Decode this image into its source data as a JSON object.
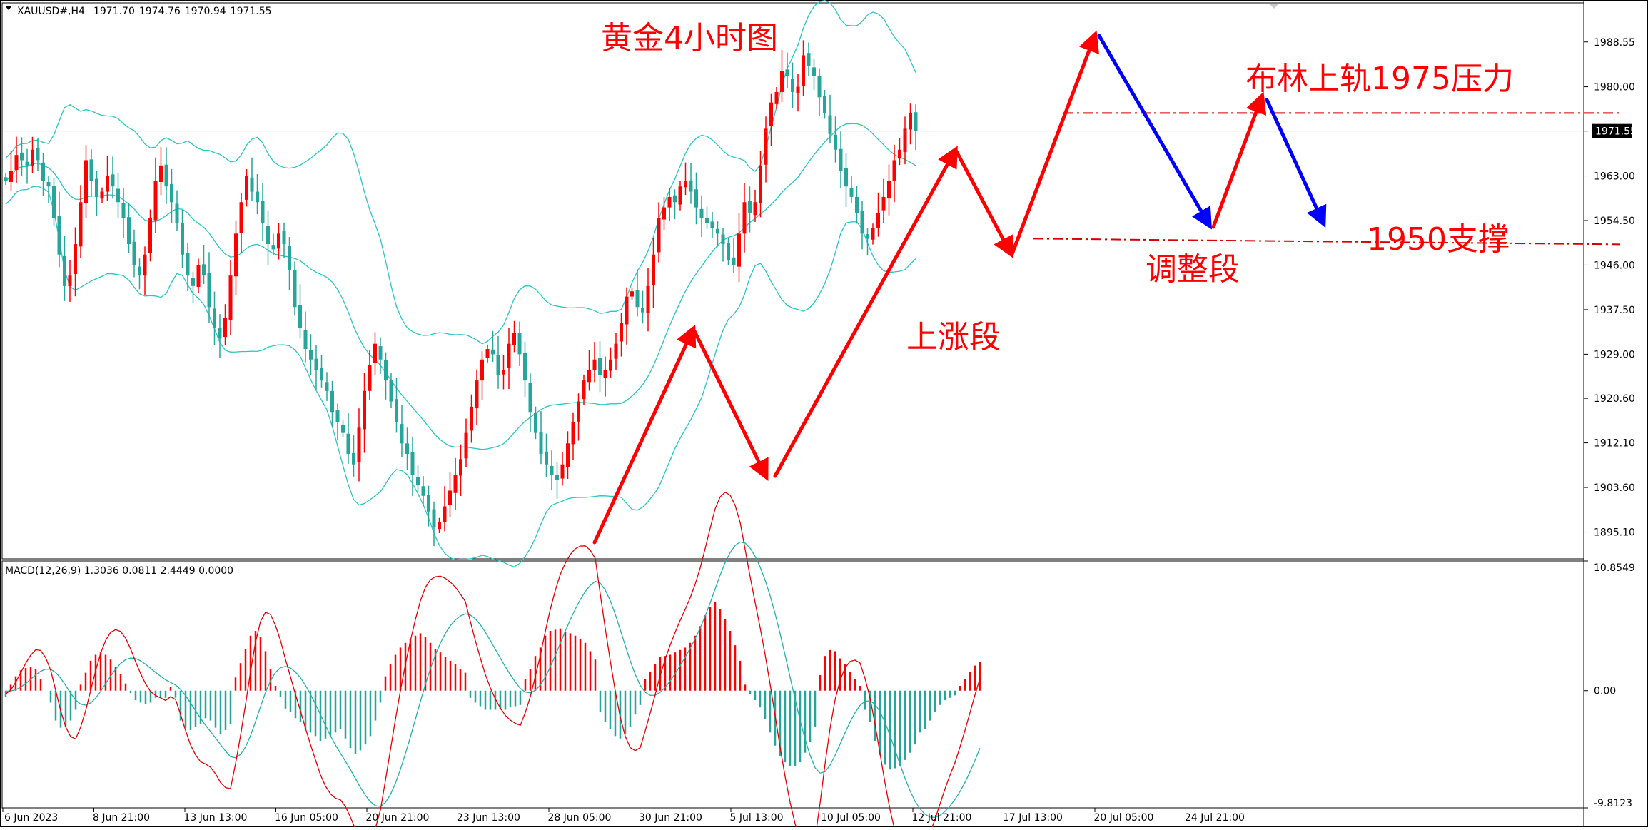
{
  "symbol_info": {
    "symbol": "XAUUSD#,H4",
    "open": "1971.70",
    "high": "1974.76",
    "low": "1970.94",
    "close": "1971.55"
  },
  "macd_info": "MACD(12,26,9) 1.3036 0.0811 2.4449 0.0000",
  "annotations": {
    "title": "黄金4小时图",
    "upper_band_resistance": "布林上轨1975压力",
    "support_1950": "1950支撑",
    "rally_leg": "上涨段",
    "correction_leg": "调整段"
  },
  "colors": {
    "bull": "#ff0000",
    "bear": "#26a69a",
    "bollinger": "#26c6c6",
    "macd_line": "#e00000",
    "signal_line": "#20b2aa",
    "arrow_up": "#ff0000",
    "arrow_down": "#0000ff",
    "dashed": "#d40000",
    "axis_text": "#000000"
  },
  "chart_data": [
    {
      "type": "candlestick",
      "title": "黄金4小时图",
      "ylim": [
        1890,
        1996
      ],
      "y_ticks": [
        "1988.55",
        "1980.00",
        "1971.55",
        "1963.00",
        "1954.50",
        "1946.00",
        "1937.50",
        "1929.00",
        "1920.60",
        "1912.10",
        "1903.60",
        "1895.10"
      ],
      "current_price_label": "1971.55",
      "reference_lines": [
        {
          "label": "布林上轨1975压力",
          "value": 1975
        },
        {
          "label": "1950支撑",
          "value": 1950.5
        }
      ],
      "x_tick_labels": [
        "6 Jun 2023",
        "8 Jun 21:00",
        "13 Jun 13:00",
        "16 Jun 05:00",
        "20 Jun 21:00",
        "23 Jun 13:00",
        "28 Jun 05:00",
        "30 Jun 21:00",
        "5 Jul 13:00",
        "10 Jul 05:00",
        "12 Jul 21:00",
        "17 Jul 13:00",
        "20 Jul 05:00",
        "24 Jul 21:00"
      ],
      "close_path": [
        1962,
        1964,
        1967,
        1966,
        1965,
        1968,
        1966,
        1962,
        1961,
        1955,
        1948,
        1942,
        1944,
        1950,
        1958,
        1966,
        1962,
        1959,
        1960,
        1963,
        1961,
        1958,
        1955,
        1950,
        1946,
        1944,
        1948,
        1955,
        1962,
        1965,
        1961,
        1958,
        1954,
        1948,
        1944,
        1942,
        1946,
        1944,
        1938,
        1934,
        1932,
        1936,
        1944,
        1952,
        1958,
        1963,
        1960,
        1958,
        1954,
        1950,
        1949,
        1952,
        1950,
        1945,
        1938,
        1934,
        1930,
        1928,
        1926,
        1924,
        1922,
        1918,
        1916,
        1914,
        1910,
        1908,
        1915,
        1922,
        1927,
        1931,
        1928,
        1924,
        1920,
        1916,
        1912,
        1910,
        1906,
        1904,
        1902,
        1899,
        1896,
        1897,
        1900,
        1903,
        1906,
        1909,
        1914,
        1919,
        1924,
        1928,
        1930,
        1929,
        1925,
        1926,
        1931,
        1933,
        1929,
        1924,
        1918,
        1914,
        1910,
        1908,
        1906,
        1905,
        1908,
        1912,
        1916,
        1920,
        1924,
        1926,
        1928,
        1925,
        1926,
        1928,
        1931,
        1935,
        1940,
        1941,
        1938,
        1937,
        1942,
        1948,
        1955,
        1957,
        1959,
        1958,
        1961,
        1962,
        1960,
        1957,
        1955,
        1954,
        1953,
        1952,
        1950,
        1947,
        1946,
        1952,
        1958,
        1956,
        1958,
        1965,
        1972,
        1977,
        1979,
        1983,
        1982,
        1979,
        1980,
        1986,
        1984,
        1982,
        1978,
        1975,
        1971,
        1968,
        1964,
        1961,
        1959,
        1956,
        1952,
        1951,
        1953,
        1956,
        1959,
        1962,
        1966,
        1968,
        1972,
        1975,
        1971.55
      ]
    },
    {
      "type": "bar",
      "title": "MACD(12,26,9)",
      "ylim": [
        -9.8123,
        10.8549
      ],
      "y_ticks": [
        "10.8549",
        "0.00",
        "-9.8123"
      ],
      "histogram": [
        -0.5,
        0.5,
        1.2,
        1.7,
        1.9,
        2.0,
        1.8,
        1.0,
        0.0,
        -1.0,
        -2.5,
        -3.1,
        -3.0,
        -2.5,
        -1.6,
        0.5,
        1.5,
        2.5,
        3.0,
        3.2,
        3.0,
        2.6,
        2.0,
        1.4,
        0.6,
        -0.2,
        -0.8,
        -1.0,
        -1.1,
        -1.0,
        -0.6,
        -0.5,
        -0.6,
        0.3,
        -0.6,
        -2.5,
        -3.1,
        -3.3,
        -3.0,
        -2.8,
        -2.3,
        -2.5,
        -3.1,
        -3.6,
        -3.3,
        -2.8,
        1.1,
        2.3,
        3.5,
        4.6,
        5.0,
        4.5,
        3.3,
        1.8,
        0.4,
        -0.5,
        -1.5,
        -1.8,
        -2.3,
        -2.6,
        -3.2,
        -3.5,
        -3.8,
        -4.2,
        -4.0,
        -3.8,
        -3.5,
        -3.2,
        -4.0,
        -4.8,
        -5.3,
        -5.0,
        -4.5,
        -3.8,
        -2.5,
        -1.0,
        1.2,
        2.2,
        3.0,
        3.6,
        4.0,
        4.3,
        4.6,
        4.8,
        4.5,
        4.0,
        3.5,
        3.2,
        2.8,
        2.5,
        2.2,
        1.8,
        1.5,
        -0.6,
        -1.0,
        -1.3,
        -1.6,
        -1.6,
        -1.6,
        -1.6,
        -1.6,
        -1.4,
        -1.3,
        -1.2,
        1.0,
        1.8,
        2.9,
        3.6,
        4.6,
        5.0,
        5.1,
        5.2,
        4.9,
        4.8,
        4.6,
        4.3,
        4.0,
        3.3,
        2.6,
        -1.8,
        -2.6,
        -3.2,
        -3.8,
        -4.0,
        -3.6,
        -3.0,
        -2.0,
        -1.2,
        1.0,
        1.6,
        2.2,
        2.8,
        2.9,
        3.0,
        3.2,
        3.4,
        3.6,
        4.0,
        4.6,
        5.4,
        6.3,
        7.0,
        7.4,
        6.8,
        6.0,
        5.0,
        3.8,
        2.5,
        0.5,
        -0.3,
        -0.8,
        -1.4,
        -2.4,
        -3.5,
        -4.6,
        -5.5,
        -6.0,
        -6.3,
        -6.3,
        -6.0,
        -5.2,
        -4.3,
        -3.0,
        1.3,
        2.9,
        3.4,
        3.3,
        2.7,
        2.2,
        1.6,
        1.0,
        0.4,
        -1.6,
        -2.6,
        -4.2,
        -5.4,
        -6.2,
        -6.6,
        -6.5,
        -6.3,
        -5.8,
        -5.2,
        -4.5,
        -3.5,
        -3.2,
        -2.5,
        -1.8,
        -1.2,
        -0.8,
        -0.6,
        -0.4,
        0.4,
        1.0,
        1.6,
        2.1,
        2.4
      ]
    }
  ]
}
